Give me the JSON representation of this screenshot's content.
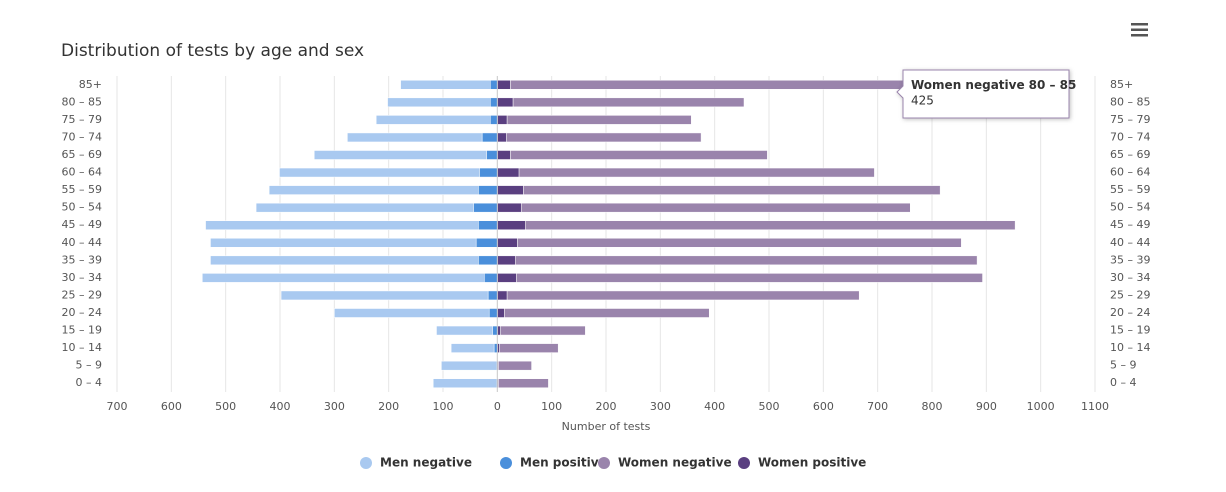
{
  "chart_data": {
    "type": "bar",
    "orientation": "horizontal",
    "stacked": true,
    "title": "Distribution of tests by age and sex",
    "x_label": "Number of tests",
    "categories": [
      "85+",
      "80 – 85",
      "75 – 79",
      "70 – 74",
      "65 – 69",
      "60 – 64",
      "55 – 59",
      "50 – 54",
      "45 – 49",
      "40 – 44",
      "35 – 39",
      "30 – 34",
      "25 – 29",
      "20 – 24",
      "15 – 19",
      "10 – 14",
      "5 – 9",
      "0 – 4"
    ],
    "series": [
      {
        "name": "Men negative",
        "color": "#a9c9f0",
        "values": [
          -165,
          -189,
          -210,
          -248,
          -317,
          -368,
          -385,
          -400,
          -502,
          -489,
          -493,
          -519,
          -381,
          -285,
          -103,
          -79,
          -101,
          -116
        ]
      },
      {
        "name": "Men positive",
        "color": "#4a8fdb",
        "values": [
          -13,
          -13,
          -13,
          -28,
          -20,
          -33,
          -35,
          -44,
          -35,
          -39,
          -35,
          -24,
          -17,
          -15,
          -9,
          -6,
          -2,
          -2
        ]
      },
      {
        "name": "Women negative",
        "color": "#9a84ac",
        "values": [
          760,
          425,
          339,
          358,
          473,
          654,
          767,
          716,
          901,
          817,
          850,
          858,
          648,
          377,
          156,
          108,
          61,
          92
        ]
      },
      {
        "name": "Women positive",
        "color": "#5a3f80",
        "values": [
          24,
          29,
          18,
          17,
          24,
          40,
          48,
          44,
          52,
          37,
          33,
          35,
          18,
          13,
          6,
          4,
          2,
          2
        ]
      }
    ],
    "xlim": [
      -700,
      1100
    ],
    "xticks": [
      {
        "value": -700,
        "label": "700"
      },
      {
        "value": -600,
        "label": "600"
      },
      {
        "value": -500,
        "label": "500"
      },
      {
        "value": -400,
        "label": "400"
      },
      {
        "value": -300,
        "label": "300"
      },
      {
        "value": -200,
        "label": "200"
      },
      {
        "value": -100,
        "label": "100"
      },
      0,
      100,
      200,
      300,
      400,
      500,
      600,
      700,
      800,
      900,
      1000,
      1100
    ],
    "grid": true,
    "legend": "bottom",
    "tooltip": {
      "series": 2,
      "category": 1
    }
  }
}
